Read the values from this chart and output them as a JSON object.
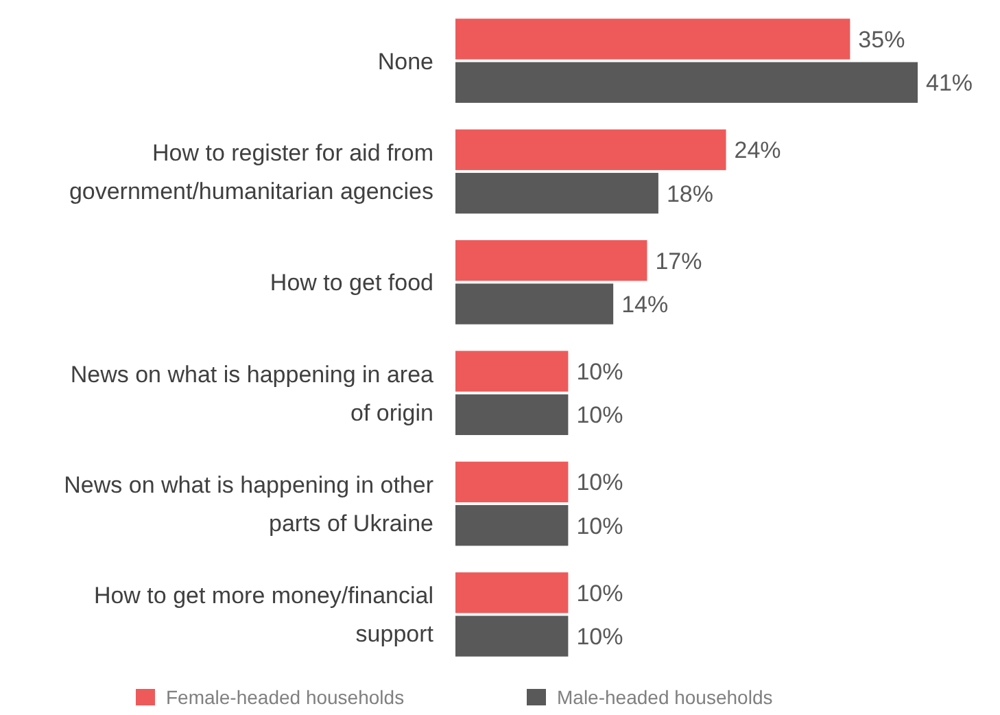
{
  "chart_data": {
    "type": "bar",
    "orientation": "horizontal",
    "categories": [
      "None",
      "How to register for aid from government/humanitarian agencies",
      "How to get food",
      "News on what is happening in area of origin",
      "News on what is happening in other parts of Ukraine",
      "How to get more money/financial support"
    ],
    "series": [
      {
        "name": "Female-headed households",
        "color": "#ee5a5a",
        "values": [
          35,
          24,
          17,
          10,
          10,
          10
        ],
        "value_labels": [
          "35%",
          "24%",
          "17%",
          "10%",
          "10%",
          "10%"
        ]
      },
      {
        "name": "Male-headed households",
        "color": "#595959",
        "values": [
          41,
          18,
          14,
          10,
          10,
          10
        ],
        "value_labels": [
          "41%",
          "18%",
          "14%",
          "10%",
          "10%",
          "10%"
        ]
      }
    ],
    "legend": "bottom"
  }
}
